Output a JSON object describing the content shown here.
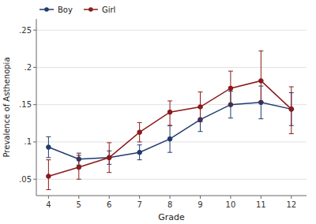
{
  "chart_data": {
    "type": "line",
    "xlabel": "Grade",
    "ylabel": "Prevalence of Asthenopia",
    "x": [
      4,
      5,
      6,
      7,
      8,
      9,
      10,
      11,
      12
    ],
    "series": [
      {
        "name": "Boy",
        "color": "#1F3B6E",
        "marker": "circle",
        "line_style": "solid",
        "values": [
          0.093,
          0.077,
          0.079,
          0.086,
          0.104,
          0.13,
          0.15,
          0.153,
          0.144
        ],
        "error_lo": [
          0.014,
          0.008,
          0.009,
          0.01,
          0.018,
          0.016,
          0.018,
          0.022,
          0.022
        ],
        "error_hi": [
          0.014,
          0.008,
          0.009,
          0.01,
          0.018,
          0.016,
          0.018,
          0.022,
          0.022
        ]
      },
      {
        "name": "Girl",
        "color": "#8B1A1A",
        "marker": "circle",
        "line_style": "solid",
        "values": [
          0.054,
          0.066,
          0.079,
          0.113,
          0.14,
          0.147,
          0.172,
          0.182,
          0.144
        ],
        "error_lo": [
          0.018,
          0.016,
          0.02,
          0.013,
          0.018,
          0.02,
          0.023,
          0.028,
          0.033
        ],
        "error_hi": [
          0.022,
          0.016,
          0.02,
          0.013,
          0.015,
          0.02,
          0.023,
          0.04,
          0.03
        ]
      }
    ],
    "xlim": [
      3.6,
      12.5
    ],
    "xticks": [
      4,
      5,
      6,
      7,
      8,
      9,
      10,
      11,
      12
    ],
    "ylim": [
      0.028,
      0.265
    ],
    "yticks": [
      {
        "value": 0.05,
        "label": ".05"
      },
      {
        "value": 0.1,
        "label": ".1"
      },
      {
        "value": 0.15,
        "label": ".15"
      },
      {
        "value": 0.2,
        "label": ".2"
      },
      {
        "value": 0.25,
        "label": ".25"
      }
    ],
    "grid": true,
    "legend": "upper-left"
  }
}
